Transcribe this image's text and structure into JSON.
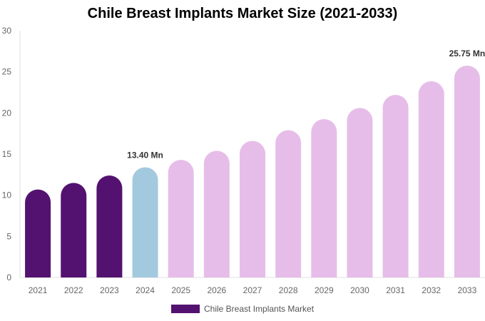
{
  "chart_data": {
    "type": "bar",
    "title": "Chile Breast Implants Market Size (2021-2033)",
    "categories": [
      "2021",
      "2022",
      "2023",
      "2024",
      "2025",
      "2026",
      "2027",
      "2028",
      "2029",
      "2030",
      "2031",
      "2032",
      "2033"
    ],
    "series": [
      {
        "name": "Chile Breast Implants Market",
        "values": [
          10.7,
          11.5,
          12.4,
          13.4,
          14.3,
          15.4,
          16.6,
          17.9,
          19.25,
          20.6,
          22.2,
          23.85,
          25.75
        ]
      }
    ],
    "bar_colors": {
      "historical": "#531270",
      "current": "#a3c9de",
      "forecast": "#e6bde8"
    },
    "color_groups": [
      "historical",
      "historical",
      "historical",
      "current",
      "forecast",
      "forecast",
      "forecast",
      "forecast",
      "forecast",
      "forecast",
      "forecast",
      "forecast",
      "forecast"
    ],
    "data_labels": {
      "3": "13.40 Mn",
      "12": "25.75 Mn"
    },
    "ylim": [
      0,
      30
    ],
    "yticks": [
      0,
      5,
      10,
      15,
      20,
      25,
      30
    ],
    "xlabel": "",
    "ylabel": "",
    "grid": false,
    "legend_position": "bottom"
  }
}
